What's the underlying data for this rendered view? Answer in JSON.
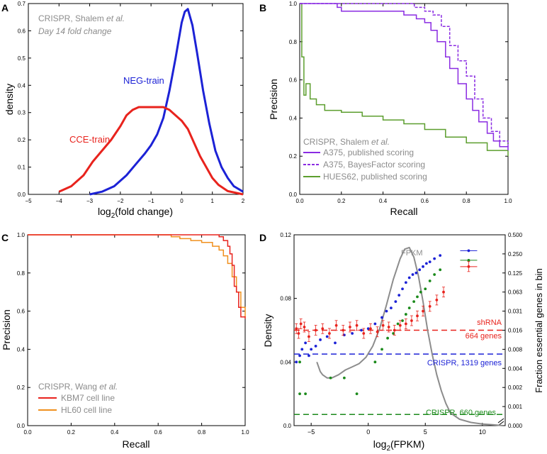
{
  "chart_data": [
    {
      "type": "line",
      "panel": "A",
      "xlabel_main": "log",
      "xlabel_sub": "2",
      "xlabel_rest": "(fold change)",
      "ylabel": "density",
      "xlim": [
        -5,
        2
      ],
      "ylim": [
        0,
        0.7
      ],
      "xticks": [
        "−5",
        "−4",
        "−3",
        "−2",
        "−1",
        "0",
        "1",
        "2"
      ],
      "yticks": [
        "0.0",
        "0.1",
        "0.2",
        "0.3",
        "0.4",
        "0.5",
        "0.6",
        "0.7"
      ],
      "annotation_line1": "CRISPR, Shalem et al.",
      "annotation_line2": "Day 14 fold change",
      "colors": {
        "cce": "#e8231d",
        "neg": "#1c22d6",
        "note": "#8c8c8c"
      },
      "series": [
        {
          "name": "NEG-train",
          "x": [
            -3,
            -2.6,
            -2.2,
            -1.8,
            -1.5,
            -1.2,
            -1.0,
            -0.8,
            -0.6,
            -0.4,
            -0.2,
            0,
            0.1,
            0.2,
            0.35,
            0.5,
            0.7,
            0.9,
            1.1,
            1.3,
            1.5,
            1.7,
            2.0
          ],
          "values": [
            0.0,
            0.01,
            0.03,
            0.07,
            0.11,
            0.15,
            0.18,
            0.22,
            0.28,
            0.38,
            0.5,
            0.63,
            0.67,
            0.68,
            0.62,
            0.52,
            0.38,
            0.26,
            0.16,
            0.1,
            0.06,
            0.03,
            0.01
          ]
        },
        {
          "name": "CCE-train",
          "x": [
            -4,
            -3.6,
            -3.2,
            -2.9,
            -2.6,
            -2.3,
            -2.0,
            -1.8,
            -1.6,
            -1.4,
            -1.2,
            -1.0,
            -0.8,
            -0.6,
            -0.4,
            -0.2,
            0,
            0.2,
            0.4,
            0.6,
            0.8,
            1.0,
            1.2,
            1.5,
            2.0
          ],
          "values": [
            0.01,
            0.03,
            0.07,
            0.12,
            0.16,
            0.2,
            0.25,
            0.29,
            0.31,
            0.32,
            0.32,
            0.32,
            0.32,
            0.32,
            0.31,
            0.29,
            0.27,
            0.24,
            0.19,
            0.14,
            0.1,
            0.06,
            0.035,
            0.012,
            0.0
          ]
        }
      ]
    },
    {
      "type": "line",
      "panel": "B",
      "xlabel": "Recall",
      "ylabel": "Precision",
      "xlim": [
        0,
        1
      ],
      "ylim": [
        0,
        1
      ],
      "xticks": [
        "0.0",
        "0.2",
        "0.4",
        "0.6",
        "0.8",
        "1.0"
      ],
      "yticks": [
        "0.0",
        "0.2",
        "0.4",
        "0.6",
        "0.8",
        "1.0"
      ],
      "legend_title": "CRISPR, Shalem et al.",
      "colors": {
        "a375": "#8a2be2",
        "hues": "#5c9e2e"
      },
      "series": [
        {
          "name": "A375, published scoring",
          "x": [
            0,
            0.18,
            0.2,
            0.4,
            0.5,
            0.56,
            0.6,
            0.63,
            0.66,
            0.7,
            0.72,
            0.76,
            0.8,
            0.83,
            0.86,
            0.9,
            0.93,
            0.96,
            1.0
          ],
          "values": [
            1.0,
            0.98,
            0.96,
            0.96,
            0.94,
            0.92,
            0.9,
            0.86,
            0.8,
            0.72,
            0.66,
            0.58,
            0.5,
            0.44,
            0.38,
            0.32,
            0.28,
            0.25,
            0.23
          ]
        },
        {
          "name": "A375, BayesFactor scoring",
          "x": [
            0,
            0.3,
            0.55,
            0.6,
            0.64,
            0.68,
            0.72,
            0.76,
            0.8,
            0.84,
            0.88,
            0.92,
            0.96,
            1.0
          ],
          "values": [
            1.0,
            1.0,
            0.98,
            0.96,
            0.94,
            0.88,
            0.78,
            0.7,
            0.62,
            0.5,
            0.4,
            0.33,
            0.28,
            0.24
          ]
        },
        {
          "name": "HUES62, published scoring",
          "x": [
            0,
            0.01,
            0.02,
            0.03,
            0.05,
            0.08,
            0.12,
            0.2,
            0.3,
            0.4,
            0.5,
            0.6,
            0.7,
            0.8,
            0.9,
            1.0
          ],
          "values": [
            1.0,
            0.72,
            0.52,
            0.58,
            0.5,
            0.47,
            0.44,
            0.43,
            0.41,
            0.39,
            0.37,
            0.34,
            0.3,
            0.27,
            0.23,
            0.2
          ]
        }
      ]
    },
    {
      "type": "line",
      "panel": "C",
      "xlabel": "Recall",
      "ylabel": "Precision",
      "xlim": [
        0,
        1
      ],
      "ylim": [
        0,
        1
      ],
      "xticks": [
        "0.0",
        "0.2",
        "0.4",
        "0.6",
        "0.8",
        "1.0"
      ],
      "yticks": [
        "0.0",
        "0.2",
        "0.4",
        "0.6",
        "0.8",
        "1.0"
      ],
      "legend_title": "CRISPR, Wang et al.",
      "colors": {
        "kbm7": "#e8231d",
        "hl60": "#f0901e"
      },
      "series": [
        {
          "name": "KBM7 cell line",
          "x": [
            0,
            0.85,
            0.88,
            0.9,
            0.92,
            0.93,
            0.94,
            0.95,
            0.96,
            0.97,
            0.98,
            1.0
          ],
          "values": [
            1.0,
            1.0,
            0.99,
            0.97,
            0.94,
            0.9,
            0.84,
            0.73,
            0.7,
            0.62,
            0.57,
            0.56
          ]
        },
        {
          "name": "HL60 cell line",
          "x": [
            0,
            0.66,
            0.7,
            0.75,
            0.8,
            0.85,
            0.88,
            0.9,
            0.92,
            0.94,
            0.96,
            0.98,
            1.0
          ],
          "values": [
            1.0,
            0.99,
            0.98,
            0.97,
            0.96,
            0.94,
            0.92,
            0.89,
            0.85,
            0.78,
            0.7,
            0.62,
            0.57
          ]
        }
      ]
    },
    {
      "type": "scatter",
      "panel": "D",
      "xlabel_main": "log",
      "xlabel_sub": "2",
      "xlabel_rest": "(FPKM)",
      "ylabel": "Density",
      "y2label": "Fraction essential genes in bin",
      "xlim": [
        -6.5,
        12
      ],
      "ylim": [
        0,
        0.12
      ],
      "xticks": [
        "−5",
        "0",
        "5",
        "10"
      ],
      "yticks": [
        "0.0",
        "0.04",
        "0.08",
        "0.12"
      ],
      "y2ticks": [
        "0.000",
        "0.001",
        "0.002",
        "0.004",
        "0.008",
        "0.016",
        "0.031",
        "0.063",
        "0.125",
        "0.250",
        "0.500"
      ],
      "fpkm_label": "FPKM",
      "shrna_label1": "shRNA",
      "shrna_label2": "664 genes",
      "crispr1_label": "CRISPR, 1319 genes",
      "crispr2_label": "CRISPR, 660 genes",
      "colors": {
        "fpkm": "#8c8c8c",
        "shrna": "#e8231d",
        "crispr_blue": "#1c22d6",
        "crispr_green": "#1b8a1b"
      },
      "density_curve": {
        "x": [
          -4.5,
          -4.2,
          -4,
          -3.6,
          -3.2,
          -2.6,
          -2,
          -1.4,
          -0.8,
          -0.2,
          0.4,
          1,
          1.6,
          2.2,
          2.8,
          3.2,
          3.6,
          4,
          4.4,
          4.8,
          5.2,
          5.6,
          6,
          6.4,
          6.8,
          7.2,
          8,
          9,
          10,
          11,
          11.8
        ],
        "values": [
          0.04,
          0.034,
          0.032,
          0.03,
          0.03,
          0.032,
          0.035,
          0.037,
          0.039,
          0.043,
          0.05,
          0.061,
          0.076,
          0.092,
          0.105,
          0.111,
          0.112,
          0.106,
          0.094,
          0.078,
          0.06,
          0.045,
          0.032,
          0.022,
          0.014,
          0.008,
          0.004,
          0.002,
          0.001,
          0.0005,
          0.0
        ]
      },
      "shrna_line": 0.06,
      "crispr1_line": 0.045,
      "crispr2_line": 0.007,
      "blue_points": {
        "x": [
          -6.3,
          -6,
          -5.8,
          -5.5,
          -5.2,
          -5,
          -4.6,
          -4.2,
          -3.6,
          -2.9,
          -2.1,
          -1.4,
          -0.6,
          0,
          0.6,
          1.2,
          1.6,
          2,
          2.4,
          2.7,
          3,
          3.3,
          3.6,
          3.9,
          4.2,
          4.5,
          4.8,
          5.1,
          5.4,
          5.8,
          6.3,
          8.8
        ],
        "values": [
          0.04,
          0.044,
          0.048,
          0.052,
          0.044,
          0.048,
          0.05,
          0.054,
          0.056,
          0.052,
          0.057,
          0.058,
          0.06,
          0.061,
          0.064,
          0.068,
          0.072,
          0.074,
          0.078,
          0.082,
          0.086,
          0.09,
          0.093,
          0.095,
          0.096,
          0.098,
          0.1,
          0.102,
          0.103,
          0.105,
          0.107,
          0.11
        ]
      },
      "green_points": {
        "x": [
          -6,
          -5.5,
          -3.3,
          -2.1,
          -1,
          -6,
          0.6,
          1.2,
          1.7,
          2.2,
          2.6,
          3,
          3.3,
          3.6,
          4,
          4.3,
          4.6,
          5,
          5.4,
          5.8,
          6.3,
          8.8
        ],
        "values": [
          0.02,
          0.02,
          0.03,
          0.03,
          0.02,
          0.04,
          0.04,
          0.048,
          0.055,
          0.058,
          0.064,
          0.066,
          0.07,
          0.074,
          0.078,
          0.081,
          0.084,
          0.086,
          0.091,
          0.095,
          0.098,
          0.104
        ]
      },
      "red_points": {
        "x": [
          -6.3,
          -6.1,
          -5.9,
          -5.6,
          -5.2,
          -4.6,
          -4,
          -3.4,
          -2.8,
          -2.2,
          -1.6,
          -1,
          -0.4,
          0.2,
          0.8,
          1.3,
          1.8,
          2.3,
          2.8,
          3.3,
          3.8,
          4.3,
          4.8,
          5.4,
          6,
          6.6,
          8.8
        ],
        "values": [
          0.061,
          0.058,
          0.064,
          0.062,
          0.056,
          0.06,
          0.061,
          0.058,
          0.063,
          0.06,
          0.062,
          0.063,
          0.058,
          0.061,
          0.059,
          0.063,
          0.062,
          0.06,
          0.063,
          0.064,
          0.066,
          0.069,
          0.072,
          0.075,
          0.079,
          0.084,
          0.1
        ]
      }
    }
  ],
  "panel_labels": {
    "a": "A",
    "b": "B",
    "c": "C",
    "d": "D"
  },
  "legend_B": [
    "A375, published scoring",
    "A375, BayesFactor scoring",
    "HUES62, published scoring"
  ],
  "legend_C": [
    "KBM7 cell line",
    "HL60 cell line"
  ],
  "series_labels_A": {
    "neg": "NEG-train",
    "cce": "CCE-train"
  }
}
